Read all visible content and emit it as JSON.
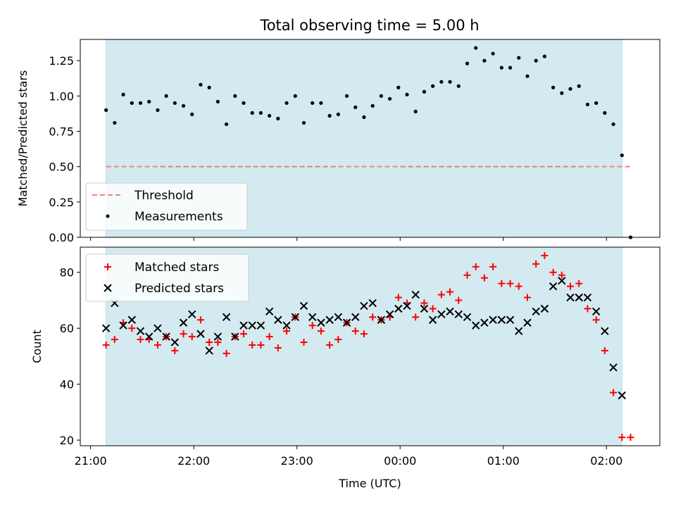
{
  "chart_data": [
    {
      "type": "scatter",
      "title": "Total observing time = 5.00 h",
      "xlabel": "",
      "ylabel": "Matched/Predicted stars",
      "ylim": [
        0,
        1.4
      ],
      "yticks": [
        "0.00",
        "0.25",
        "0.50",
        "0.75",
        "1.00",
        "1.25"
      ],
      "ytick_values": [
        0,
        0.25,
        0.5,
        0.75,
        1.0,
        1.25
      ],
      "shaded_span": {
        "start": "21:09",
        "end": "02:09",
        "color": "#d3eaf0"
      },
      "legend": {
        "placement": "lower-left",
        "entries": [
          "Threshold",
          "Measurements"
        ]
      },
      "series": [
        {
          "name": "Threshold",
          "kind": "dashed-line",
          "color": "#f08080",
          "y": 0.5,
          "x_range": [
            "21:09",
            "02:14"
          ]
        },
        {
          "name": "Measurements",
          "kind": "dots",
          "color": "#000000",
          "x": [
            "21:09",
            "21:14",
            "21:19",
            "21:24",
            "21:29",
            "21:34",
            "21:39",
            "21:44",
            "21:49",
            "21:54",
            "21:59",
            "22:04",
            "22:09",
            "22:14",
            "22:19",
            "22:24",
            "22:29",
            "22:34",
            "22:39",
            "22:44",
            "22:49",
            "22:54",
            "22:59",
            "23:04",
            "23:09",
            "23:14",
            "23:19",
            "23:24",
            "23:29",
            "23:34",
            "23:39",
            "23:44",
            "23:49",
            "23:54",
            "23:59",
            "00:04",
            "00:09",
            "00:14",
            "00:19",
            "00:24",
            "00:29",
            "00:34",
            "00:39",
            "00:44",
            "00:49",
            "00:54",
            "00:59",
            "01:04",
            "01:09",
            "01:14",
            "01:19",
            "01:24",
            "01:29",
            "01:34",
            "01:39",
            "01:44",
            "01:49",
            "01:54",
            "01:59",
            "02:04",
            "02:09",
            "02:14"
          ],
          "y": [
            0.9,
            0.81,
            1.01,
            0.95,
            0.95,
            0.96,
            0.9,
            1.0,
            0.95,
            0.93,
            0.87,
            1.08,
            1.06,
            0.96,
            0.8,
            1.0,
            0.95,
            0.88,
            0.88,
            0.86,
            0.84,
            0.95,
            1.0,
            0.81,
            0.95,
            0.95,
            0.86,
            0.87,
            1.0,
            0.92,
            0.85,
            0.93,
            1.0,
            0.98,
            1.06,
            1.01,
            0.89,
            1.03,
            1.07,
            1.1,
            1.1,
            1.07,
            1.23,
            1.34,
            1.25,
            1.3,
            1.2,
            1.2,
            1.27,
            1.14,
            1.25,
            1.28,
            1.06,
            1.02,
            1.05,
            1.07,
            0.94,
            0.95,
            0.88,
            0.8,
            0.58,
            0.0
          ]
        }
      ]
    },
    {
      "type": "scatter",
      "title": "",
      "xlabel": "Time (UTC)",
      "ylabel": "Count",
      "ylim": [
        18,
        89
      ],
      "yticks": [
        "20",
        "40",
        "60",
        "80"
      ],
      "ytick_values": [
        20,
        40,
        60,
        80
      ],
      "xticks": [
        "21:00",
        "22:00",
        "23:00",
        "00:00",
        "01:00",
        "02:00"
      ],
      "shaded_span": {
        "start": "21:09",
        "end": "02:09",
        "color": "#d3eaf0"
      },
      "legend": {
        "placement": "upper-left",
        "entries": [
          "Matched stars",
          "Predicted stars"
        ]
      },
      "series": [
        {
          "name": "Matched stars",
          "marker": "plus",
          "color": "#ff0000",
          "x": [
            "21:09",
            "21:14",
            "21:19",
            "21:24",
            "21:29",
            "21:34",
            "21:39",
            "21:44",
            "21:49",
            "21:54",
            "21:59",
            "22:04",
            "22:09",
            "22:14",
            "22:19",
            "22:24",
            "22:29",
            "22:34",
            "22:39",
            "22:44",
            "22:49",
            "22:54",
            "22:59",
            "23:04",
            "23:09",
            "23:14",
            "23:19",
            "23:24",
            "23:29",
            "23:34",
            "23:39",
            "23:44",
            "23:49",
            "23:54",
            "23:59",
            "00:04",
            "00:09",
            "00:14",
            "00:19",
            "00:24",
            "00:29",
            "00:34",
            "00:39",
            "00:44",
            "00:49",
            "00:54",
            "00:59",
            "01:04",
            "01:09",
            "01:14",
            "01:19",
            "01:24",
            "01:29",
            "01:34",
            "01:39",
            "01:44",
            "01:49",
            "01:54",
            "01:59",
            "02:04",
            "02:09",
            "02:14"
          ],
          "y": [
            54,
            56,
            62,
            60,
            56,
            56,
            54,
            57,
            52,
            58,
            57,
            63,
            55,
            55,
            51,
            57,
            58,
            54,
            54,
            57,
            53,
            59,
            64,
            55,
            61,
            59,
            54,
            56,
            62,
            59,
            58,
            64,
            63,
            64,
            71,
            69,
            64,
            69,
            67,
            72,
            73,
            70,
            79,
            82,
            78,
            82,
            76,
            76,
            75,
            71,
            83,
            86,
            80,
            79,
            75,
            76,
            67,
            63,
            52,
            37,
            21,
            21
          ]
        },
        {
          "name": "Predicted stars",
          "marker": "x",
          "color": "#000000",
          "x": [
            "21:09",
            "21:14",
            "21:19",
            "21:24",
            "21:29",
            "21:34",
            "21:39",
            "21:44",
            "21:49",
            "21:54",
            "21:59",
            "22:04",
            "22:09",
            "22:14",
            "22:19",
            "22:24",
            "22:29",
            "22:34",
            "22:39",
            "22:44",
            "22:49",
            "22:54",
            "22:59",
            "23:04",
            "23:09",
            "23:14",
            "23:19",
            "23:24",
            "23:29",
            "23:34",
            "23:39",
            "23:44",
            "23:49",
            "23:54",
            "23:59",
            "00:04",
            "00:09",
            "00:14",
            "00:19",
            "00:24",
            "00:29",
            "00:34",
            "00:39",
            "00:44",
            "00:49",
            "00:54",
            "00:59",
            "01:04",
            "01:09",
            "01:14",
            "01:19",
            "01:24",
            "01:29",
            "01:34",
            "01:39",
            "01:44",
            "01:49",
            "01:54",
            "01:59",
            "02:04",
            "02:09"
          ],
          "y": [
            60,
            69,
            61,
            63,
            59,
            57,
            60,
            57,
            55,
            62,
            65,
            58,
            52,
            57,
            64,
            57,
            61,
            61,
            61,
            66,
            63,
            61,
            64,
            68,
            64,
            62,
            63,
            64,
            62,
            64,
            68,
            69,
            63,
            65,
            67,
            68,
            72,
            67,
            63,
            65,
            66,
            65,
            64,
            61,
            62,
            63,
            63,
            63,
            59,
            62,
            66,
            67,
            75,
            77,
            71,
            71,
            71,
            66,
            59,
            46,
            36
          ]
        }
      ]
    }
  ]
}
